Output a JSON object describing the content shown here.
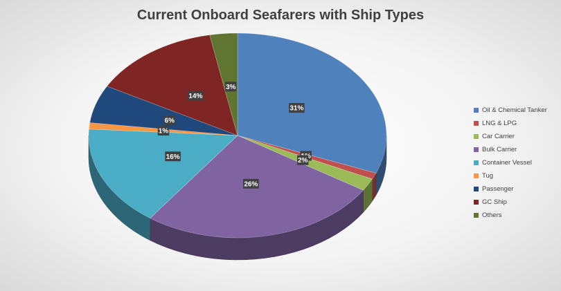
{
  "chart_data": {
    "type": "pie",
    "title": "Current Onboard Seafarers with Ship Types",
    "categories": [
      "Oil & Chemical Tanker",
      "LNG & LPG",
      "Car Carrier",
      "Bulk Carrier",
      "Container Vessel",
      "Tug",
      "Passenger",
      "GC Ship",
      "Others"
    ],
    "values": [
      31,
      1,
      2,
      26,
      16,
      1,
      6,
      14,
      3
    ],
    "labels": [
      "31%",
      "1%",
      "2%",
      "26%",
      "16%",
      "1%",
      "6%",
      "14%",
      "3%"
    ],
    "colors": [
      "#4F81BD",
      "#C0504D",
      "#9BBB59",
      "#8064A2",
      "#4BACC6",
      "#F79646",
      "#1F497D",
      "#7F2524",
      "#5F7530"
    ],
    "legend_position": "right",
    "style": "3d"
  }
}
